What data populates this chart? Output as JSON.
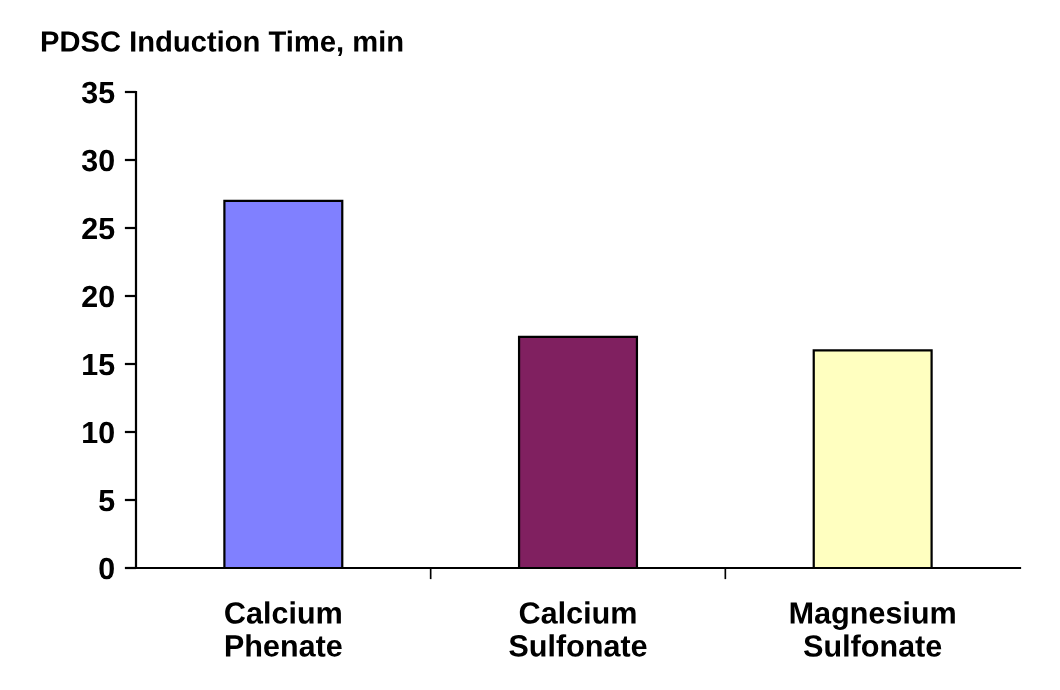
{
  "chart_data": {
    "type": "bar",
    "title": "PDSC Induction Time, min",
    "categories": [
      "Calcium\nPhenate",
      "Calcium\nSulfonate",
      "Magnesium\nSulfonate"
    ],
    "values": [
      27,
      17,
      16
    ],
    "colors": [
      "#8080ff",
      "#802060",
      "#ffffc0"
    ],
    "ylim": [
      0,
      35
    ],
    "yticks": [
      0,
      5,
      10,
      15,
      20,
      25,
      30,
      35
    ],
    "grid": false,
    "legend": false
  }
}
